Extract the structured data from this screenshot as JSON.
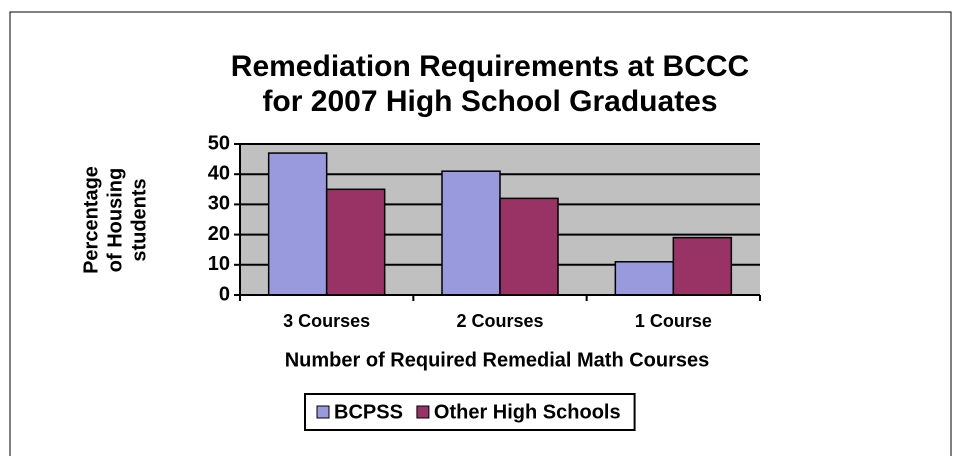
{
  "chart_data": {
    "type": "bar",
    "title": [
      "Remediation Requirements at BCCC",
      "for 2007 High School Graduates"
    ],
    "ylabel": [
      "Percentage",
      "of Housing",
      "students"
    ],
    "xlabel": "Number of Required Remedial Math Courses",
    "categories": [
      "3 Courses",
      "2 Courses",
      "1 Course"
    ],
    "series": [
      {
        "name": "BCPSS",
        "color": "#9999dd",
        "values": [
          47,
          41,
          11
        ]
      },
      {
        "name": "Other High Schools",
        "color": "#993366",
        "values": [
          35,
          32,
          19
        ]
      }
    ],
    "ylim": [
      0,
      50
    ],
    "yticks": [
      0,
      10,
      20,
      30,
      40,
      50
    ],
    "grid": true,
    "legend": "bottom"
  }
}
